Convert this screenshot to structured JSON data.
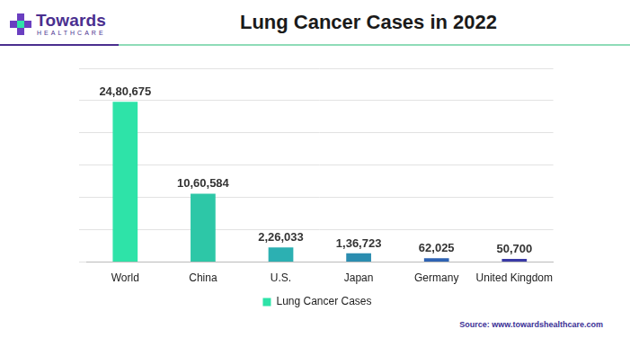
{
  "chart_data": {
    "type": "bar",
    "title": "Lung Cancer Cases in 2022",
    "categories": [
      "World",
      "China",
      "U.S.",
      "Japan",
      "Germany",
      "United Kingdom"
    ],
    "series": [
      {
        "name": "Lung Cancer Cases",
        "values": [
          2480675,
          1060584,
          226033,
          136723,
          62025,
          50700
        ],
        "value_labels": [
          "24,80,675",
          "10,60,584",
          "2,26,033",
          "1,36,723",
          "62,025",
          "50,700"
        ],
        "colors": [
          "#2ee3a8",
          "#2dc7a7",
          "#2cb0b2",
          "#2b8db0",
          "#2e63b3",
          "#3a3aa6"
        ]
      }
    ],
    "ylim": [
      0,
      3000000
    ],
    "yticks": [
      0,
      500000,
      1000000,
      1500000,
      2000000,
      2500000,
      3000000
    ],
    "grid": true,
    "legend": "bottom",
    "data_labels": true,
    "tick_labels": "x",
    "annotations": [
      "Towards",
      "HEALTHCARE",
      "Source: www.towardshealthcare.com"
    ]
  }
}
